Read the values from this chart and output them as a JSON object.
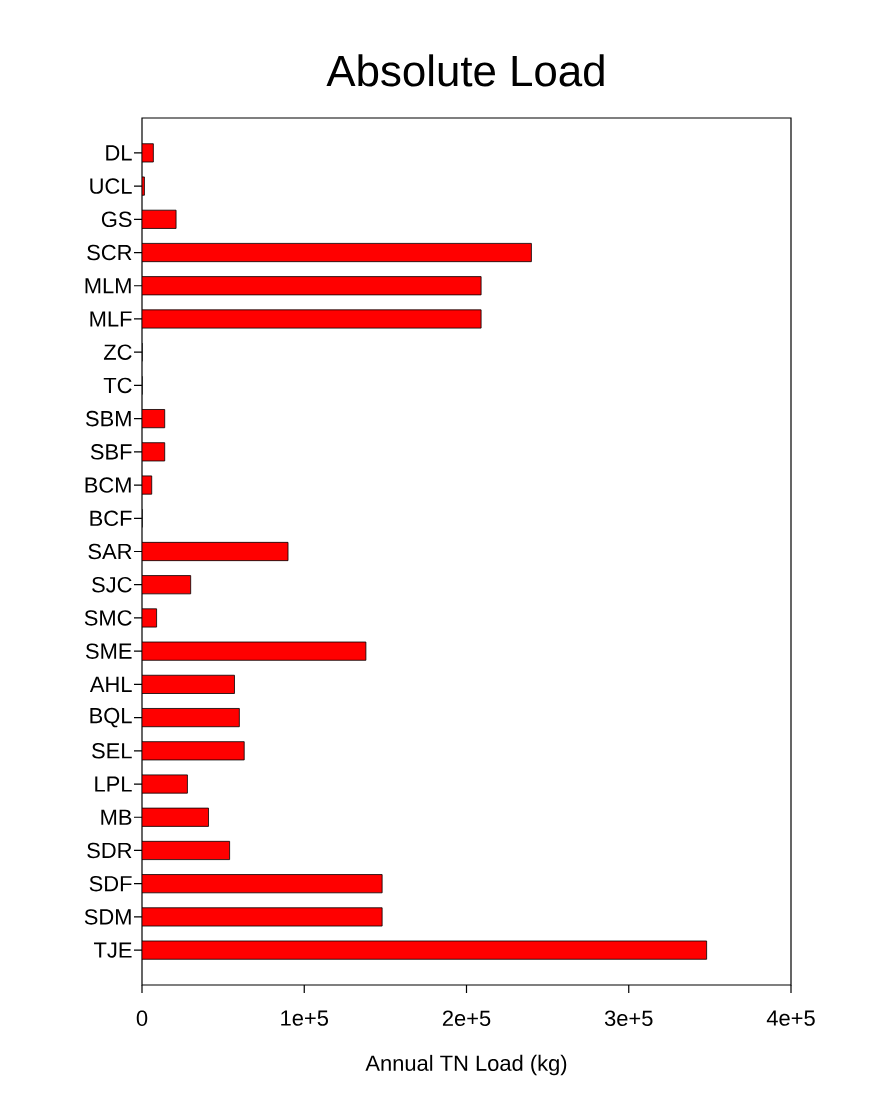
{
  "chart_data": {
    "type": "bar",
    "orientation": "horizontal",
    "title": "Absolute Load",
    "xlabel": "Annual TN Load (kg)",
    "categories": [
      "DL",
      "UCL",
      "GS",
      "SCR",
      "MLM",
      "MLF",
      "ZC",
      "TC",
      "SBM",
      "SBF",
      "BCM",
      "BCF",
      "SAR",
      "SJC",
      "SMC",
      "SME",
      "AHL",
      "BQL",
      "SEL",
      "LPL",
      "MB",
      "SDR",
      "SDF",
      "SDM",
      "TJE"
    ],
    "values": [
      7000,
      1500,
      21000,
      240000,
      209000,
      209000,
      0,
      0,
      14000,
      14000,
      6000,
      0,
      90000,
      30000,
      9000,
      138000,
      57000,
      60000,
      63000,
      28000,
      41000,
      54000,
      148000,
      148000,
      348000
    ],
    "color": "#ff0000",
    "xlim": [
      0,
      400000
    ],
    "xticks": [
      0,
      {
        "value": 100000,
        "label": "1e+5"
      },
      {
        "value": 200000,
        "label": "2e+5"
      },
      {
        "value": 300000,
        "label": "3e+5"
      },
      {
        "value": 400000,
        "label": "4e+5"
      }
    ]
  }
}
